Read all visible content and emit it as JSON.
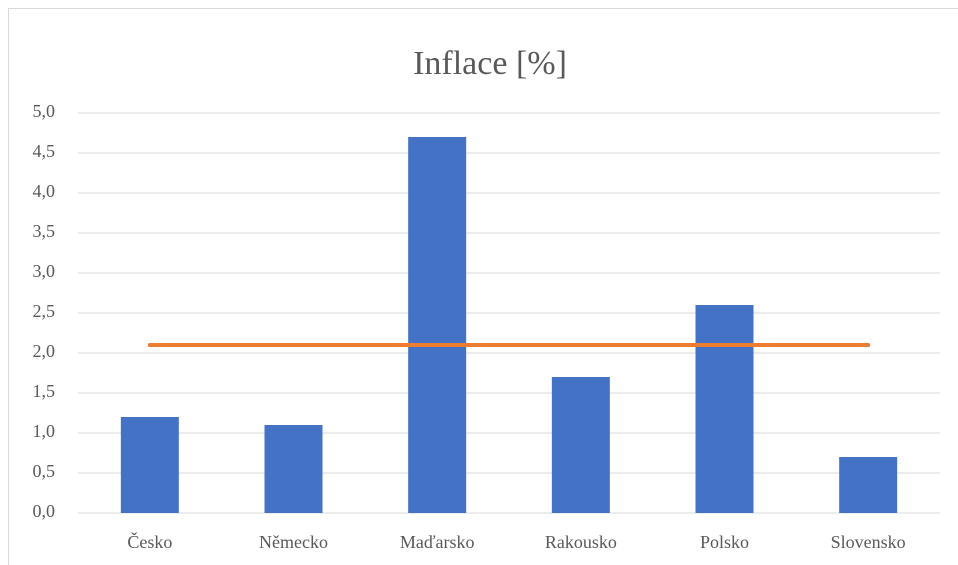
{
  "chart_data": {
    "type": "bar",
    "title": "Inflace [%]",
    "categories": [
      "Česko",
      "Německo",
      "Maďarsko",
      "Rakousko",
      "Polsko",
      "Slovensko"
    ],
    "series": [
      {
        "type": "bar",
        "color": "#4472c4",
        "values": [
          1.2,
          1.1,
          4.7,
          1.7,
          2.6,
          0.7
        ]
      },
      {
        "type": "line",
        "color": "#ed7d31",
        "values": [
          2.1,
          2.1,
          2.1,
          2.1,
          2.1,
          2.1
        ]
      }
    ],
    "ylim": [
      0,
      5
    ],
    "yticks": [
      {
        "value": 0,
        "label": "0,0"
      },
      {
        "value": 0.5,
        "label": "0,5"
      },
      {
        "value": 1,
        "label": "1,0"
      },
      {
        "value": 1.5,
        "label": "1,5"
      },
      {
        "value": 2,
        "label": "2,0"
      },
      {
        "value": 2.5,
        "label": "2,5"
      },
      {
        "value": 3,
        "label": "3,0"
      },
      {
        "value": 3.5,
        "label": "3,5"
      },
      {
        "value": 4,
        "label": "4,0"
      },
      {
        "value": 4.5,
        "label": "4,5"
      },
      {
        "value": 5,
        "label": "5,0"
      }
    ],
    "grid": true
  }
}
